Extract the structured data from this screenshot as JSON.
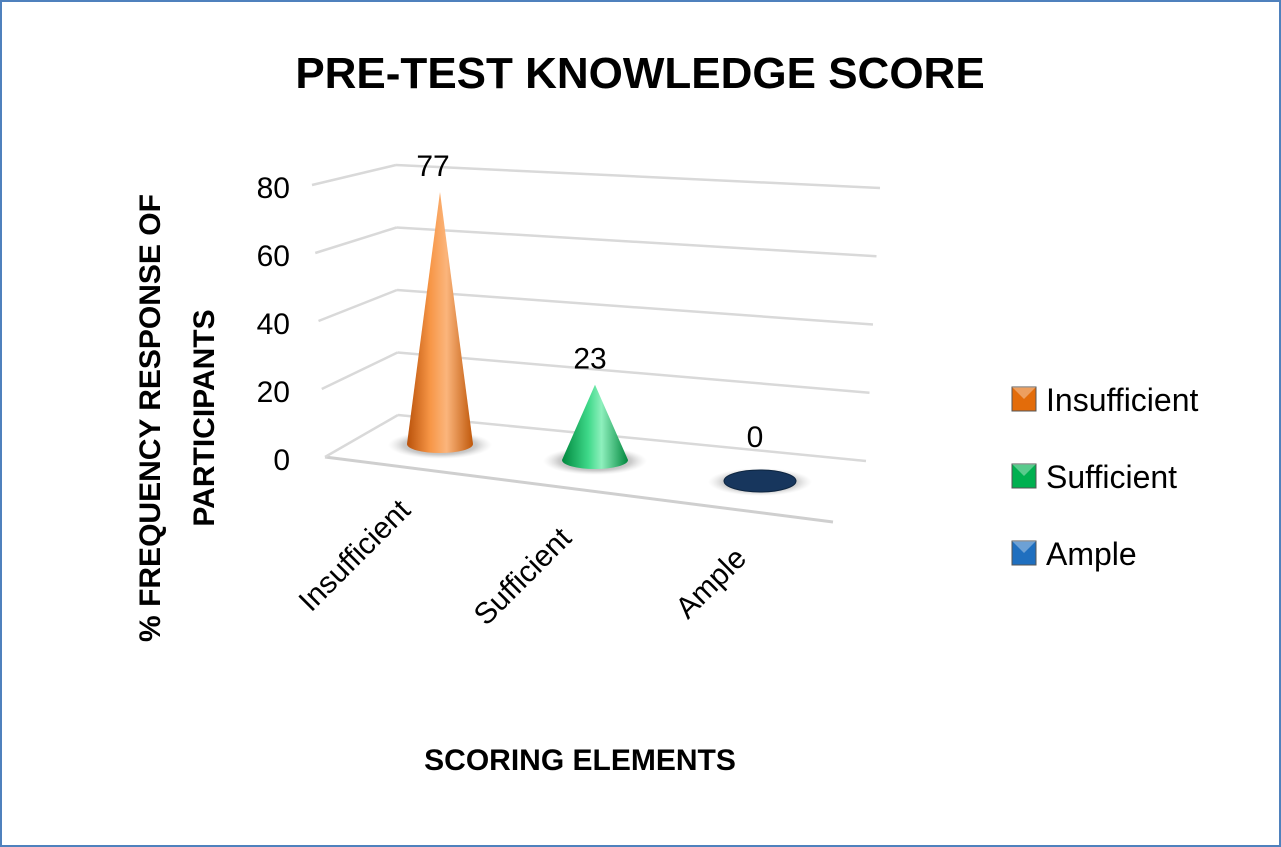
{
  "chart_data": {
    "type": "bar",
    "subtype": "3d-cone",
    "title": "PRE-TEST KNOWLEDGE SCORE",
    "xlabel": "SCORING ELEMENTS",
    "ylabel_lines": [
      "% FREQUENCY RESPONSE OF",
      "PARTICIPANTS"
    ],
    "categories": [
      "Insufficient",
      "Sufficient",
      "Ample"
    ],
    "values": [
      77,
      23,
      0
    ],
    "data_labels": [
      "77",
      "23",
      "0"
    ],
    "ylim": [
      0,
      80
    ],
    "yticks": [
      "0",
      "20",
      "40",
      "60",
      "80"
    ],
    "grid": true,
    "legend": {
      "position": "right",
      "items": [
        "Insufficient",
        "Sufficient",
        "Ample"
      ]
    },
    "colors": {
      "Insufficient": "#e36c0a",
      "Sufficient": "#00b050",
      "Ample": "#17365d",
      "frame": "#4f81bd"
    }
  }
}
